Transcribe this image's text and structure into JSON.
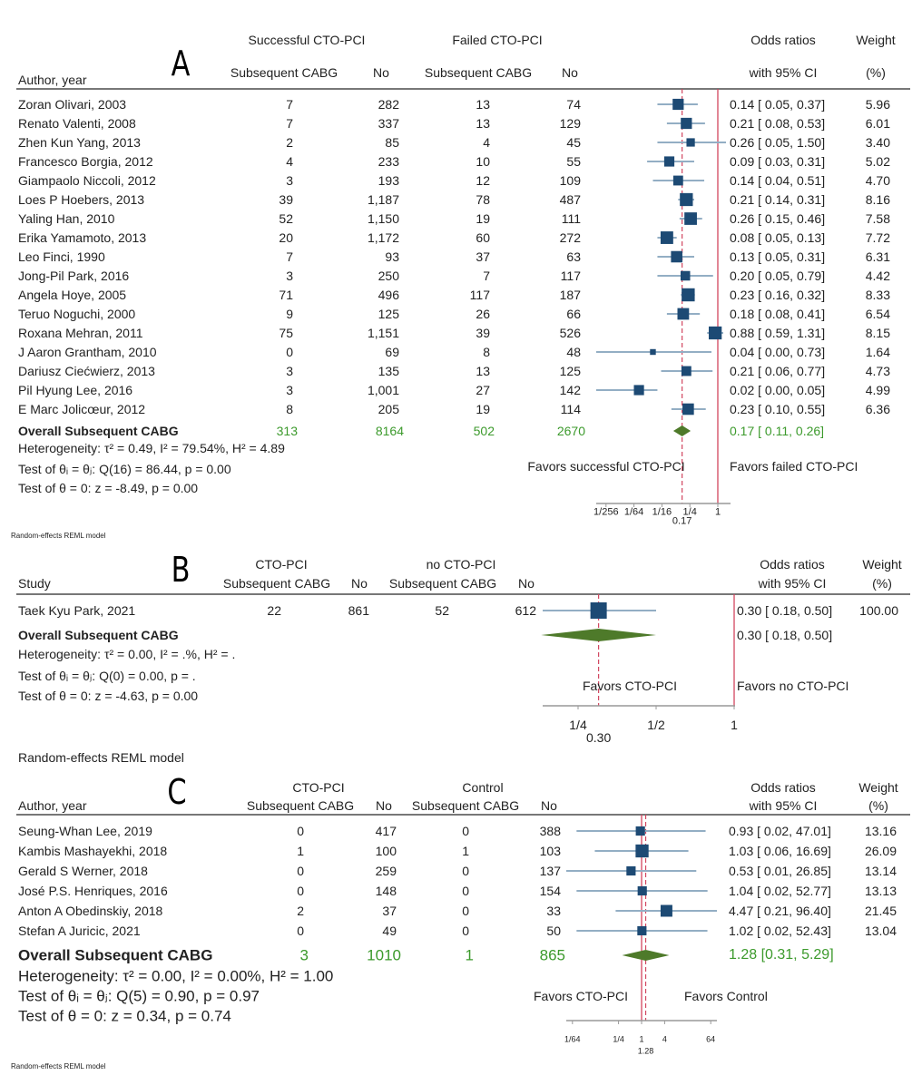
{
  "colors": {
    "marker": "#1d4a74",
    "ci_line": "#93aec4",
    "diamond": "#4e7a2a",
    "overall_text": "#3c9a2c",
    "null_line": "#d2465f",
    "overall_line": "#d2465f"
  },
  "chart_data": [
    {
      "type": "forest",
      "panel_label": "A",
      "group_headers": [
        "Successful CTO-PCI",
        "Failed CTO-PCI"
      ],
      "col_headers": [
        "Author, year",
        "Subsequent CABG",
        "No",
        "Subsequent CABG",
        "No"
      ],
      "or_header": [
        "Odds ratios",
        "with 95% CI"
      ],
      "weight_header": [
        "Weight",
        "(%)"
      ],
      "x_scale": "log2",
      "studies": [
        {
          "name": "Zoran Olivari, 2003",
          "a": "7",
          "b": "282",
          "c": "13",
          "d": "74",
          "or_text": "0.14 [ 0.05, 0.37]",
          "or": 0.14,
          "lo": 0.05,
          "hi": 0.37,
          "weight": "5.96"
        },
        {
          "name": "Renato Valenti, 2008",
          "a": "7",
          "b": "337",
          "c": "13",
          "d": "129",
          "or_text": "0.21 [ 0.08, 0.53]",
          "or": 0.21,
          "lo": 0.08,
          "hi": 0.53,
          "weight": "6.01"
        },
        {
          "name": "Zhen Kun Yang, 2013",
          "a": "2",
          "b": "85",
          "c": "4",
          "d": "45",
          "or_text": "0.26 [ 0.05, 1.50]",
          "or": 0.26,
          "lo": 0.05,
          "hi": 1.5,
          "weight": "3.40"
        },
        {
          "name": "Francesco Borgia, 2012",
          "a": "4",
          "b": "233",
          "c": "10",
          "d": "55",
          "or_text": "0.09 [ 0.03, 0.31]",
          "or": 0.09,
          "lo": 0.03,
          "hi": 0.31,
          "weight": "5.02"
        },
        {
          "name": "Giampaolo Niccoli, 2012",
          "a": "3",
          "b": "193",
          "c": "12",
          "d": "109",
          "or_text": "0.14 [ 0.04, 0.51]",
          "or": 0.14,
          "lo": 0.04,
          "hi": 0.51,
          "weight": "4.70"
        },
        {
          "name": "Loes P Hoebers, 2013",
          "a": "39",
          "b": "1,187",
          "c": "78",
          "d": "487",
          "or_text": "0.21 [ 0.14, 0.31]",
          "or": 0.21,
          "lo": 0.14,
          "hi": 0.31,
          "weight": "8.16"
        },
        {
          "name": "Yaling Han, 2010",
          "a": "52",
          "b": "1,150",
          "c": "19",
          "d": "111",
          "or_text": "0.26 [ 0.15, 0.46]",
          "or": 0.26,
          "lo": 0.15,
          "hi": 0.46,
          "weight": "7.58"
        },
        {
          "name": "Erika Yamamoto, 2013",
          "a": "20",
          "b": "1,172",
          "c": "60",
          "d": "272",
          "or_text": "0.08 [ 0.05, 0.13]",
          "or": 0.08,
          "lo": 0.05,
          "hi": 0.13,
          "weight": "7.72"
        },
        {
          "name": "Leo Finci, 1990",
          "a": "7",
          "b": "93",
          "c": "37",
          "d": "63",
          "or_text": "0.13 [ 0.05, 0.31]",
          "or": 0.13,
          "lo": 0.05,
          "hi": 0.31,
          "weight": "6.31"
        },
        {
          "name": "Jong-Pil Park, 2016",
          "a": "3",
          "b": "250",
          "c": "7",
          "d": "117",
          "or_text": "0.20 [ 0.05, 0.79]",
          "or": 0.2,
          "lo": 0.05,
          "hi": 0.79,
          "weight": "4.42"
        },
        {
          "name": "Angela Hoye, 2005",
          "a": "71",
          "b": "496",
          "c": "117",
          "d": "187",
          "or_text": "0.23 [ 0.16, 0.32]",
          "or": 0.23,
          "lo": 0.16,
          "hi": 0.32,
          "weight": "8.33"
        },
        {
          "name": "Teruo Noguchi, 2000",
          "a": "9",
          "b": "125",
          "c": "26",
          "d": "66",
          "or_text": "0.18 [ 0.08, 0.41]",
          "or": 0.18,
          "lo": 0.08,
          "hi": 0.41,
          "weight": "6.54"
        },
        {
          "name": "Roxana Mehran, 2011",
          "a": "75",
          "b": "1,151",
          "c": "39",
          "d": "526",
          "or_text": "0.88 [ 0.59, 1.31]",
          "or": 0.88,
          "lo": 0.59,
          "hi": 1.31,
          "weight": "8.15"
        },
        {
          "name": "J Aaron Grantham, 2010",
          "a": "0",
          "b": "69",
          "c": "8",
          "d": "48",
          "or_text": "0.04 [ 0.00, 0.73]",
          "or": 0.04,
          "lo": 0.0,
          "hi": 0.73,
          "weight": "1.64"
        },
        {
          "name": "Dariusz Ciećwierz, 2013",
          "a": "3",
          "b": "135",
          "c": "13",
          "d": "125",
          "or_text": "0.21 [ 0.06, 0.77]",
          "or": 0.21,
          "lo": 0.06,
          "hi": 0.77,
          "weight": "4.73"
        },
        {
          "name": "Pil Hyung Lee, 2016",
          "a": "3",
          "b": "1,001",
          "c": "27",
          "d": "142",
          "or_text": "0.02 [ 0.00, 0.05]",
          "or": 0.02,
          "lo": 0.0,
          "hi": 0.05,
          "weight": "4.99"
        },
        {
          "name": "E Marc Jolicœur, 2012",
          "a": "8",
          "b": "205",
          "c": "19",
          "d": "114",
          "or_text": "0.23 [ 0.10, 0.55]",
          "or": 0.23,
          "lo": 0.1,
          "hi": 0.55,
          "weight": "6.36"
        }
      ],
      "overall": {
        "label": "Overall Subsequent CABG",
        "a": "313",
        "b": "8164",
        "c": "502",
        "d": "2670",
        "or_text": "0.17 [ 0.11, 0.26]",
        "or": 0.17,
        "lo": 0.11,
        "hi": 0.26
      },
      "heterogeneity": "Heterogeneity: τ² = 0.49, I² = 79.54%, H² = 4.89",
      "test_homogeneity": "Test of θᵢ = θⱼ: Q(16) = 86.44, p = 0.00",
      "test_effect": "Test of θ = 0: z = -8.49, p = 0.00",
      "favors_left": "Favors successful CTO-PCI",
      "favors_right": "Favors failed CTO-PCI",
      "tick_labels": [
        "1/256",
        "1/64",
        "1/16",
        "1/4",
        "1"
      ],
      "tick_values": [
        0.00390625,
        0.015625,
        0.0625,
        0.25,
        1
      ],
      "overall_tick_label": "0.17",
      "model_note": "Random-effects REML model"
    },
    {
      "type": "forest",
      "panel_label": "B",
      "group_headers": [
        "CTO-PCI",
        "no CTO-PCI"
      ],
      "col_headers": [
        "Study",
        "Subsequent CABG",
        "No",
        "Subsequent CABG",
        "No"
      ],
      "or_header": [
        "Odds ratios",
        "with 95% CI"
      ],
      "weight_header": [
        "Weight",
        "(%)"
      ],
      "x_scale": "log2",
      "studies": [
        {
          "name": "Taek Kyu Park, 2021",
          "a": "22",
          "b": "861",
          "c": "52",
          "d": "612",
          "or_text": "0.30 [ 0.18, 0.50]",
          "or": 0.3,
          "lo": 0.18,
          "hi": 0.5,
          "weight": "100.00"
        }
      ],
      "overall": {
        "label": "Overall Subsequent CABG",
        "a": "",
        "b": "",
        "c": "",
        "d": "",
        "or_text": "0.30 [ 0.18, 0.50]",
        "or": 0.3,
        "lo": 0.18,
        "hi": 0.5
      },
      "heterogeneity": "Heterogeneity: τ² = 0.00, I² = .%, H² = .",
      "test_homogeneity": "Test of θᵢ = θⱼ: Q(0) = 0.00, p = .",
      "test_effect": "Test of θ = 0: z = -4.63, p = 0.00",
      "favors_left": "Favors CTO-PCI",
      "favors_right": "Favors no CTO-PCI",
      "tick_labels": [
        "1/4",
        "1/2",
        "1"
      ],
      "tick_values": [
        0.25,
        0.5,
        1
      ],
      "overall_tick_label": "0.30",
      "model_note": "Random-effects REML model"
    },
    {
      "type": "forest",
      "panel_label": "C",
      "group_headers": [
        "CTO-PCI",
        "Control"
      ],
      "col_headers": [
        "Author, year",
        "Subsequent CABG",
        "No",
        "Subsequent CABG",
        "No"
      ],
      "or_header": [
        "Odds ratios",
        "with 95% CI"
      ],
      "weight_header": [
        "Weight",
        "(%)"
      ],
      "x_scale": "log2",
      "studies": [
        {
          "name": "Seung-Whan Lee, 2019",
          "a": "0",
          "b": "417",
          "c": "0",
          "d": "388",
          "or_text": "0.93 [  0.02, 47.01]",
          "or": 0.93,
          "lo": 0.02,
          "hi": 47.01,
          "weight": "13.16"
        },
        {
          "name": "Kambis Mashayekhi, 2018",
          "a": "1",
          "b": "100",
          "c": "1",
          "d": "103",
          "or_text": "1.03 [  0.06, 16.69]",
          "or": 1.03,
          "lo": 0.06,
          "hi": 16.69,
          "weight": "26.09"
        },
        {
          "name": "Gerald S Werner, 2018",
          "a": "0",
          "b": "259",
          "c": "0",
          "d": "137",
          "or_text": "0.53 [  0.01, 26.85]",
          "or": 0.53,
          "lo": 0.01,
          "hi": 26.85,
          "weight": "13.14"
        },
        {
          "name": "José P.S. Henriques, 2016",
          "a": "0",
          "b": "148",
          "c": "0",
          "d": "154",
          "or_text": "1.04 [  0.02, 52.77]",
          "or": 1.04,
          "lo": 0.02,
          "hi": 52.77,
          "weight": "13.13"
        },
        {
          "name": "Anton A Obedinskiy, 2018",
          "a": "2",
          "b": "37",
          "c": "0",
          "d": "33",
          "or_text": "4.47 [  0.21, 96.40]",
          "or": 4.47,
          "lo": 0.21,
          "hi": 96.4,
          "weight": "21.45"
        },
        {
          "name": "Stefan A Juricic, 2021",
          "a": "0",
          "b": "49",
          "c": "0",
          "d": "50",
          "or_text": "1.02 [  0.02, 52.43]",
          "or": 1.02,
          "lo": 0.02,
          "hi": 52.43,
          "weight": "13.04"
        }
      ],
      "overall": {
        "label": "Overall Subsequent CABG",
        "a": "3",
        "b": "1010",
        "c": "1",
        "d": "865",
        "or_text": "1.28 [0.31,  5.29]",
        "or": 1.28,
        "lo": 0.31,
        "hi": 5.29
      },
      "heterogeneity": "Heterogeneity: τ² = 0.00, I² = 0.00%, H² = 1.00",
      "test_homogeneity": "Test of θᵢ = θⱼ: Q(5) = 0.90, p = 0.97",
      "test_effect": "Test of θ = 0: z = 0.34, p = 0.74",
      "favors_left": "Favors CTO-PCI",
      "favors_right": "Favors Control",
      "tick_labels": [
        "1/64",
        "1/4",
        "1",
        "4",
        "64"
      ],
      "tick_values": [
        0.015625,
        0.25,
        1,
        4,
        64
      ],
      "overall_tick_label": "1.28",
      "model_note": "Random-effects REML model"
    }
  ]
}
